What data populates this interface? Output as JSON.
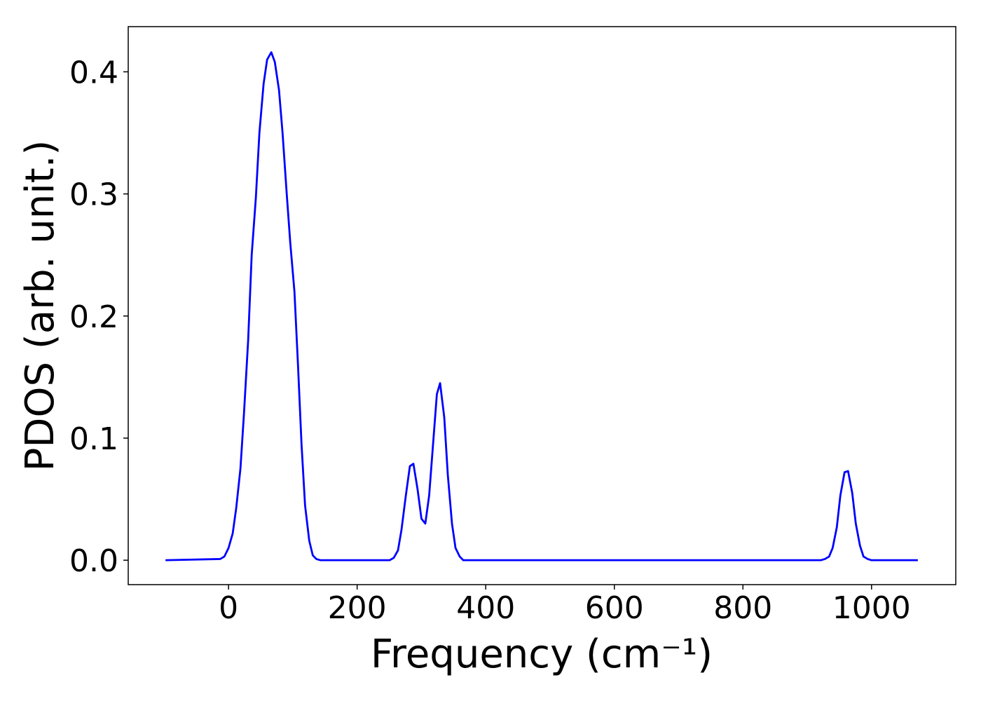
{
  "chart_data": {
    "type": "line",
    "xlabel": "Frequency (cm⁻¹)",
    "ylabel": "PDOS (arb. unit.)",
    "xlim": [
      -156,
      1131
    ],
    "ylim": [
      -0.02,
      0.437
    ],
    "xticks": [
      0,
      200,
      400,
      600,
      800,
      1000
    ],
    "yticks": [
      {
        "value": 0,
        "label": "0.0"
      },
      0.1,
      0.2,
      0.3,
      0.4
    ],
    "grid": false,
    "series": [
      {
        "name": "PDOS",
        "color": "#0000ff",
        "x": [
          -98,
          -13,
          -6.5,
          0,
          6.5,
          12,
          18.5,
          24,
          30.5,
          36,
          42.5,
          48,
          54.5,
          60,
          66.5,
          72,
          78.5,
          84,
          90.5,
          96,
          102.5,
          108,
          113.5,
          119,
          125.5,
          131,
          136.5,
          143,
          250.5,
          257,
          263.5,
          269,
          275.5,
          282,
          287.5,
          294,
          300,
          306,
          312,
          318.5,
          324,
          329,
          335.5,
          341,
          347.5,
          353,
          359.5,
          365,
          921,
          927.5,
          934,
          939.5,
          946,
          951.5,
          958,
          963.5,
          970,
          975.5,
          982,
          987.5,
          994,
          1000,
          1072
        ],
        "values": [
          0,
          0.001,
          0.003,
          0.01,
          0.022,
          0.043,
          0.075,
          0.12,
          0.18,
          0.25,
          0.297,
          0.35,
          0.39,
          0.41,
          0.416,
          0.408,
          0.385,
          0.35,
          0.3,
          0.26,
          0.22,
          0.16,
          0.095,
          0.045,
          0.016,
          0.004,
          0.001,
          0,
          0,
          0.002,
          0.008,
          0.025,
          0.052,
          0.077,
          0.079,
          0.058,
          0.034,
          0.03,
          0.053,
          0.098,
          0.136,
          0.145,
          0.117,
          0.07,
          0.03,
          0.01,
          0.003,
          0,
          0,
          0.001,
          0.003,
          0.01,
          0.027,
          0.053,
          0.072,
          0.073,
          0.055,
          0.03,
          0.012,
          0.003,
          0.001,
          0,
          0
        ]
      }
    ]
  }
}
